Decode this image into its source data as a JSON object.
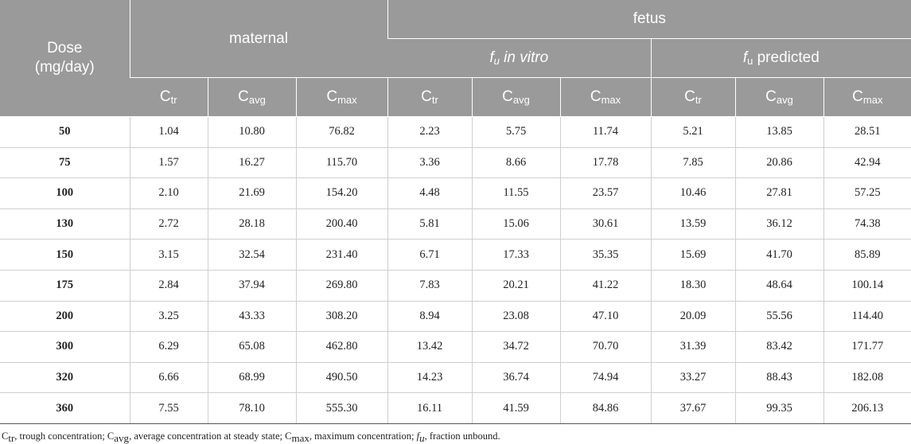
{
  "header": {
    "dose_line1": "Dose",
    "dose_line2": "(mg/day)",
    "maternal": "maternal",
    "fetus": "fetus",
    "fu_invitro_sym": "f",
    "fu_invitro_sub": "u",
    "fu_invitro_text": " in vitro",
    "fu_pred_sym": "f",
    "fu_pred_sub": "u",
    "fu_pred_text": " predicted",
    "columns": [
      {
        "base": "C",
        "sub": "tr"
      },
      {
        "base": "C",
        "sub": "avg"
      },
      {
        "base": "C",
        "sub": "max"
      },
      {
        "base": "C",
        "sub": "tr"
      },
      {
        "base": "C",
        "sub": "avg"
      },
      {
        "base": "C",
        "sub": "max"
      },
      {
        "base": "C",
        "sub": "tr"
      },
      {
        "base": "C",
        "sub": "avg"
      },
      {
        "base": "C",
        "sub": "max"
      }
    ]
  },
  "rows": [
    [
      "50",
      "1.04",
      "10.80",
      "76.82",
      "2.23",
      "5.75",
      "11.74",
      "5.21",
      "13.85",
      "28.51"
    ],
    [
      "75",
      "1.57",
      "16.27",
      "115.70",
      "3.36",
      "8.66",
      "17.78",
      "7.85",
      "20.86",
      "42.94"
    ],
    [
      "100",
      "2.10",
      "21.69",
      "154.20",
      "4.48",
      "11.55",
      "23.57",
      "10.46",
      "27.81",
      "57.25"
    ],
    [
      "130",
      "2.72",
      "28.18",
      "200.40",
      "5.81",
      "15.06",
      "30.61",
      "13.59",
      "36.12",
      "74.38"
    ],
    [
      "150",
      "3.15",
      "32.54",
      "231.40",
      "6.71",
      "17.33",
      "35.35",
      "15.69",
      "41.70",
      "85.89"
    ],
    [
      "175",
      "2.84",
      "37.94",
      "269.80",
      "7.83",
      "20.21",
      "41.22",
      "18.30",
      "48.64",
      "100.14"
    ],
    [
      "200",
      "3.25",
      "43.33",
      "308.20",
      "8.94",
      "23.08",
      "47.10",
      "20.09",
      "55.56",
      "114.40"
    ],
    [
      "300",
      "6.29",
      "65.08",
      "462.80",
      "13.42",
      "34.72",
      "70.70",
      "31.39",
      "83.42",
      "171.77"
    ],
    [
      "320",
      "6.66",
      "68.99",
      "490.50",
      "14.23",
      "36.74",
      "74.94",
      "33.27",
      "88.43",
      "182.08"
    ],
    [
      "360",
      "7.55",
      "78.10",
      "555.30",
      "16.11",
      "41.59",
      "84.86",
      "37.67",
      "99.35",
      "206.13"
    ]
  ],
  "footnote": {
    "p1": "C",
    "p1_sub": "tr",
    "p2": ", trough concentration; C",
    "p2_sub": "avg",
    "p3": ", average concentration at steady state; C",
    "p3_sub": "max",
    "p4": ", maximum concentration; ",
    "p4_sym": "f",
    "p4_sub": "u",
    "p5": ", fraction unbound."
  }
}
